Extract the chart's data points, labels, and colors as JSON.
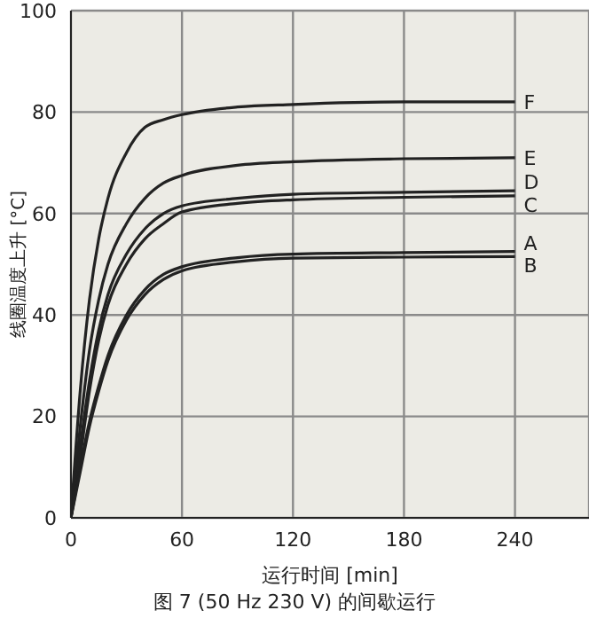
{
  "chart_data": {
    "type": "line",
    "xlabel": "运行时间 [min]",
    "ylabel": "线圈温度上升 [°C]",
    "annotations": [
      "图 7 (50 Hz 230 V) 的间歇运行"
    ],
    "x": [
      0,
      5,
      10,
      15,
      20,
      30,
      40,
      50,
      60,
      90,
      120,
      180,
      240
    ],
    "series": [
      {
        "name": "F",
        "color": "#222222",
        "values": [
          0,
          25,
          43,
          55,
          63,
          72,
          77,
          78.5,
          79.5,
          81,
          81.5,
          82,
          82
        ]
      },
      {
        "name": "E",
        "color": "#222222",
        "values": [
          0,
          18,
          33,
          43,
          50,
          58,
          63,
          66,
          67.5,
          69.5,
          70.2,
          70.8,
          71
        ]
      },
      {
        "name": "D",
        "color": "#222222",
        "values": [
          0,
          14,
          27,
          37,
          44,
          52,
          57,
          60,
          61.5,
          63,
          63.8,
          64.2,
          64.5
        ]
      },
      {
        "name": "C",
        "color": "#222222",
        "values": [
          0,
          12,
          25,
          35,
          42,
          50,
          55,
          58,
          60.3,
          62,
          62.7,
          63.2,
          63.5
        ]
      },
      {
        "name": "A",
        "color": "#222222",
        "values": [
          0,
          10,
          19,
          26,
          32,
          40,
          45,
          48,
          49.5,
          51.3,
          52,
          52.3,
          52.5
        ]
      },
      {
        "name": "B",
        "color": "#222222",
        "values": [
          0,
          9,
          18,
          25,
          31,
          39,
          44,
          47,
          48.7,
          50.5,
          51.2,
          51.4,
          51.5
        ]
      }
    ],
    "xlim": [
      0,
      280
    ],
    "xticks": [
      0,
      60,
      120,
      180,
      240
    ],
    "ylim": [
      0,
      100
    ],
    "yticks": [
      0,
      20,
      40,
      60,
      80,
      100
    ],
    "grid": true,
    "legend": false,
    "marker": "none",
    "line_style": "solid"
  }
}
